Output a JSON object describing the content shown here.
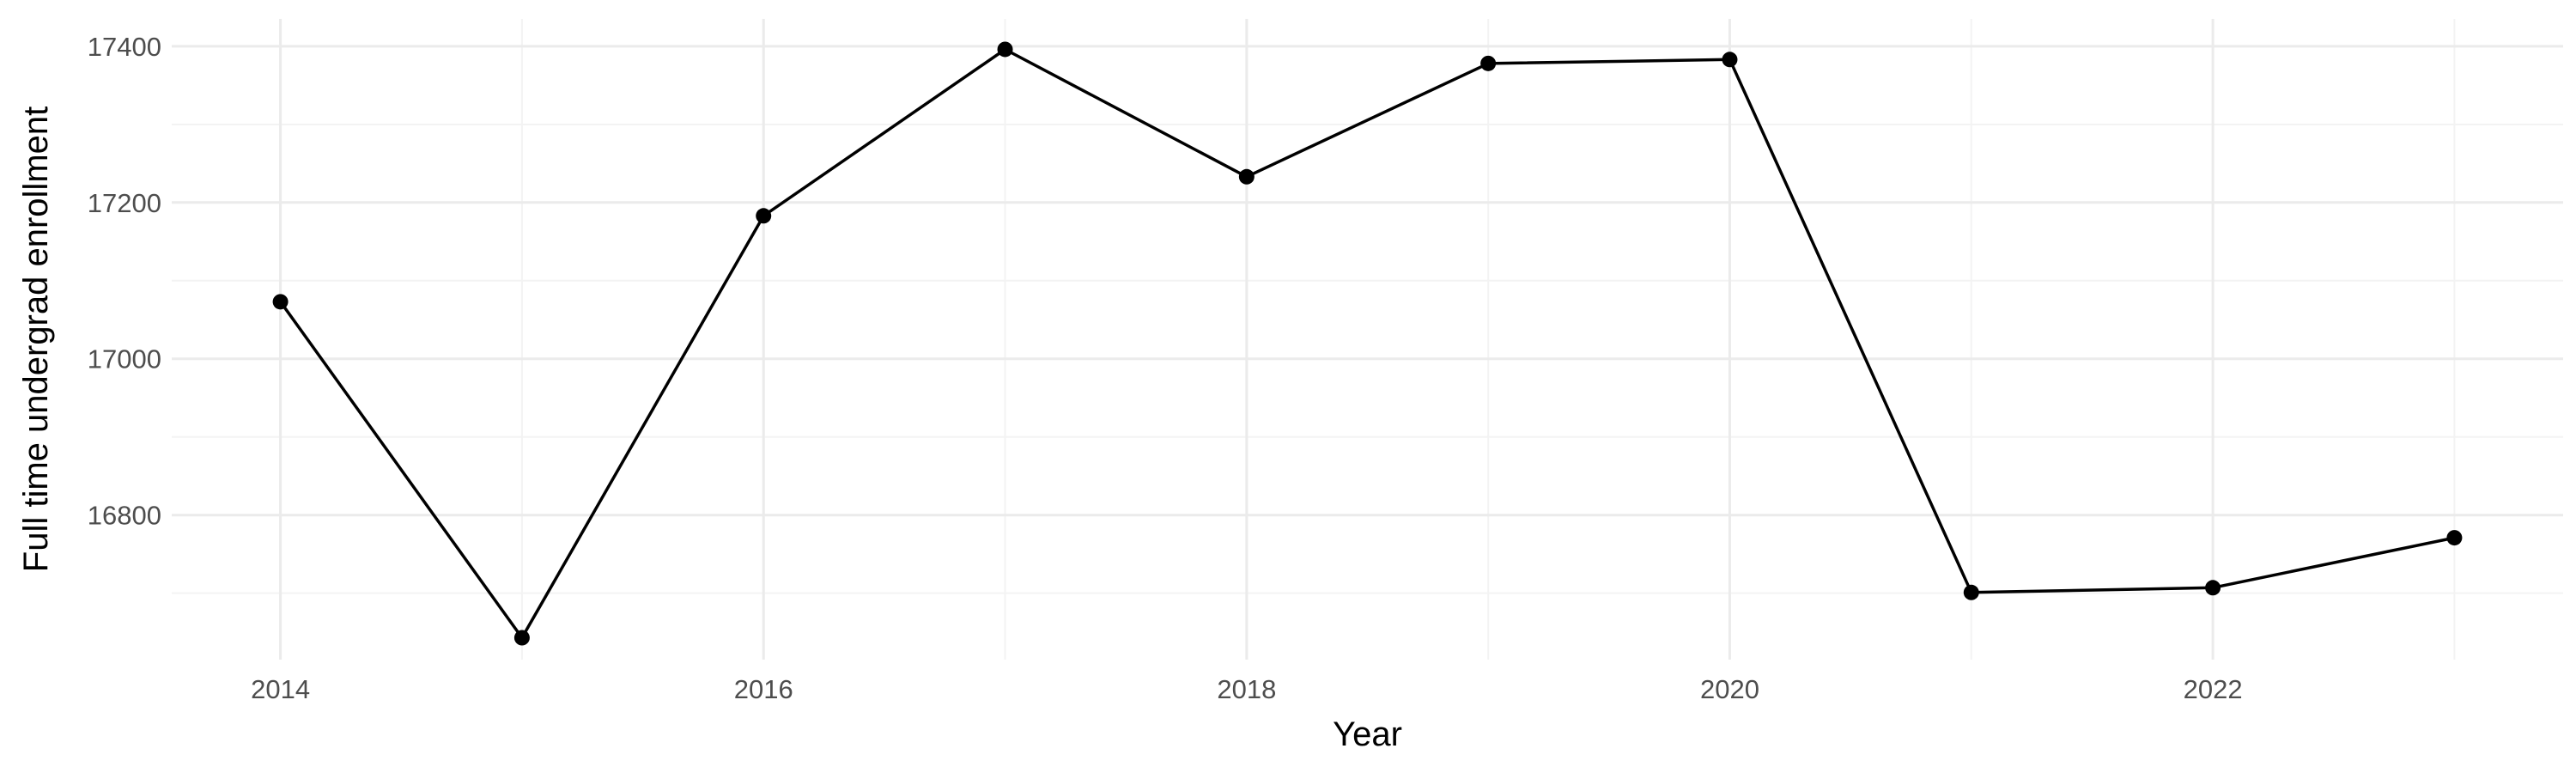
{
  "chart_data": {
    "type": "line",
    "title": "",
    "xlabel": "Year",
    "ylabel": "Full time undergrad enrollment",
    "x": [
      2014,
      2015,
      2016,
      2017,
      2018,
      2019,
      2020,
      2021,
      2022,
      2023
    ],
    "y": [
      17073,
      16643,
      17183,
      17396,
      17233,
      17378,
      17383,
      16701,
      16707,
      16771
    ],
    "x_ticks": [
      "2014",
      "2016",
      "2018",
      "2020",
      "2022"
    ],
    "y_ticks": [
      "16800",
      "17000",
      "17200",
      "17400"
    ],
    "xlim": [
      2013.55,
      2023.45
    ],
    "ylim": [
      16615,
      17435
    ],
    "grid": true,
    "legend": "none",
    "colors": {
      "line": "#000000",
      "point": "#000000",
      "grid": "#ebebeb",
      "tick_text": "#4d4d4d"
    }
  }
}
